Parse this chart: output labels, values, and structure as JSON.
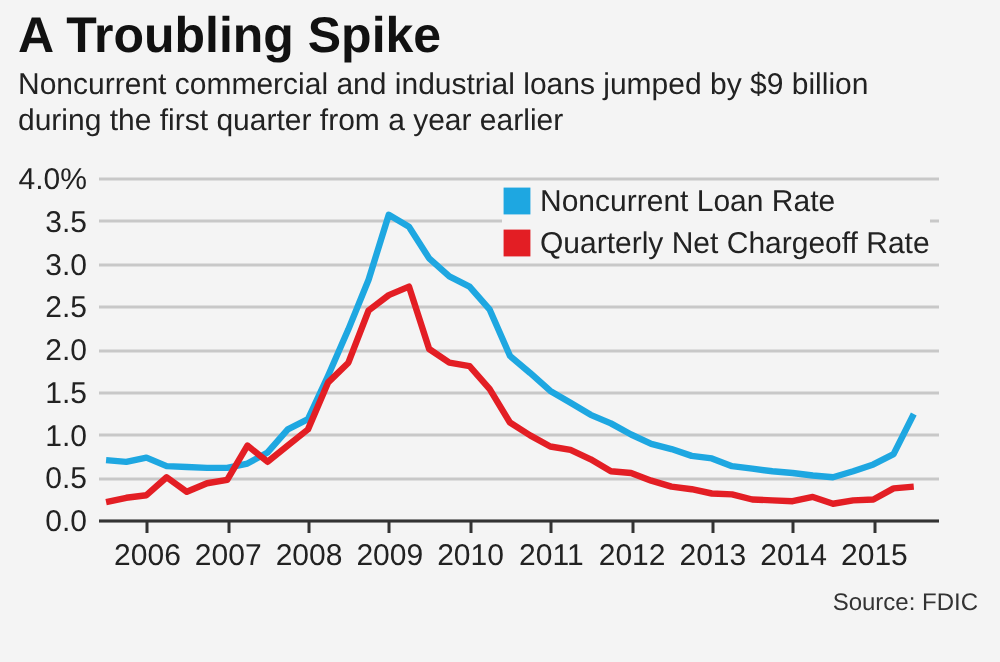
{
  "chart_data": {
    "type": "line",
    "title": "A Troubling Spike",
    "subtitle": "Noncurrent commercial and industrial loans jumped by $9 billion during the first quarter from a year earlier",
    "x": [
      2006,
      2006.25,
      2006.5,
      2006.75,
      2007,
      2007.25,
      2007.5,
      2007.75,
      2008,
      2008.25,
      2008.5,
      2008.75,
      2009,
      2009.25,
      2009.5,
      2009.75,
      2010,
      2010.25,
      2010.5,
      2010.75,
      2011,
      2011.25,
      2011.5,
      2011.75,
      2012,
      2012.25,
      2012.5,
      2012.75,
      2013,
      2013.25,
      2013.5,
      2013.75,
      2014,
      2014.25,
      2014.5,
      2014.75,
      2015,
      2015.25,
      2015.5,
      2015.75,
      2016
    ],
    "series": [
      {
        "name": "Noncurrent Loan Rate",
        "color": "#1ea7e1",
        "values": [
          0.7,
          0.68,
          0.73,
          0.63,
          0.62,
          0.61,
          0.61,
          0.66,
          0.79,
          1.06,
          1.18,
          1.69,
          2.23,
          2.81,
          3.57,
          3.43,
          3.06,
          2.85,
          2.73,
          2.46,
          1.92,
          1.72,
          1.51,
          1.37,
          1.23,
          1.13,
          1.0,
          0.89,
          0.83,
          0.75,
          0.72,
          0.63,
          0.6,
          0.57,
          0.55,
          0.52,
          0.5,
          0.57,
          0.65,
          0.77,
          1.24
        ]
      },
      {
        "name": "Quarterly Net Chargeoff Rate",
        "color": "#e31e24",
        "values": [
          0.21,
          0.26,
          0.29,
          0.5,
          0.33,
          0.43,
          0.47,
          0.87,
          0.68,
          0.87,
          1.06,
          1.61,
          1.84,
          2.45,
          2.63,
          2.73,
          2.0,
          1.84,
          1.8,
          1.53,
          1.14,
          0.99,
          0.86,
          0.82,
          0.71,
          0.57,
          0.55,
          0.46,
          0.39,
          0.36,
          0.31,
          0.3,
          0.24,
          0.23,
          0.22,
          0.27,
          0.19,
          0.23,
          0.24,
          0.37,
          0.39
        ]
      }
    ],
    "xlim": [
      2005.9,
      2016.3
    ],
    "xticks": [
      {
        "value": 2006.5,
        "label": "2006"
      },
      {
        "value": 2007.5,
        "label": "2007"
      },
      {
        "value": 2008.5,
        "label": "2008"
      },
      {
        "value": 2009.5,
        "label": "2009"
      },
      {
        "value": 2010.5,
        "label": "2010"
      },
      {
        "value": 2011.5,
        "label": "2011"
      },
      {
        "value": 2012.5,
        "label": "2012"
      },
      {
        "value": 2013.5,
        "label": "2013"
      },
      {
        "value": 2014.5,
        "label": "2014"
      },
      {
        "value": 2015.5,
        "label": "2015"
      }
    ],
    "ylim": [
      0,
      4
    ],
    "yticks": [
      {
        "value": 0,
        "label": "0.0"
      },
      {
        "value": 0.5,
        "label": "0.5"
      },
      {
        "value": 1,
        "label": "1.0"
      },
      {
        "value": 1.5,
        "label": "1.5"
      },
      {
        "value": 2,
        "label": "2.0"
      },
      {
        "value": 2.5,
        "label": "2.5"
      },
      {
        "value": 3,
        "label": "3.0"
      },
      {
        "value": 3.5,
        "label": "3.5"
      },
      {
        "value": 4,
        "label": "4.0%"
      }
    ],
    "grid": "y",
    "legend": "top right",
    "annotations": [
      "Source: FDIC"
    ]
  }
}
